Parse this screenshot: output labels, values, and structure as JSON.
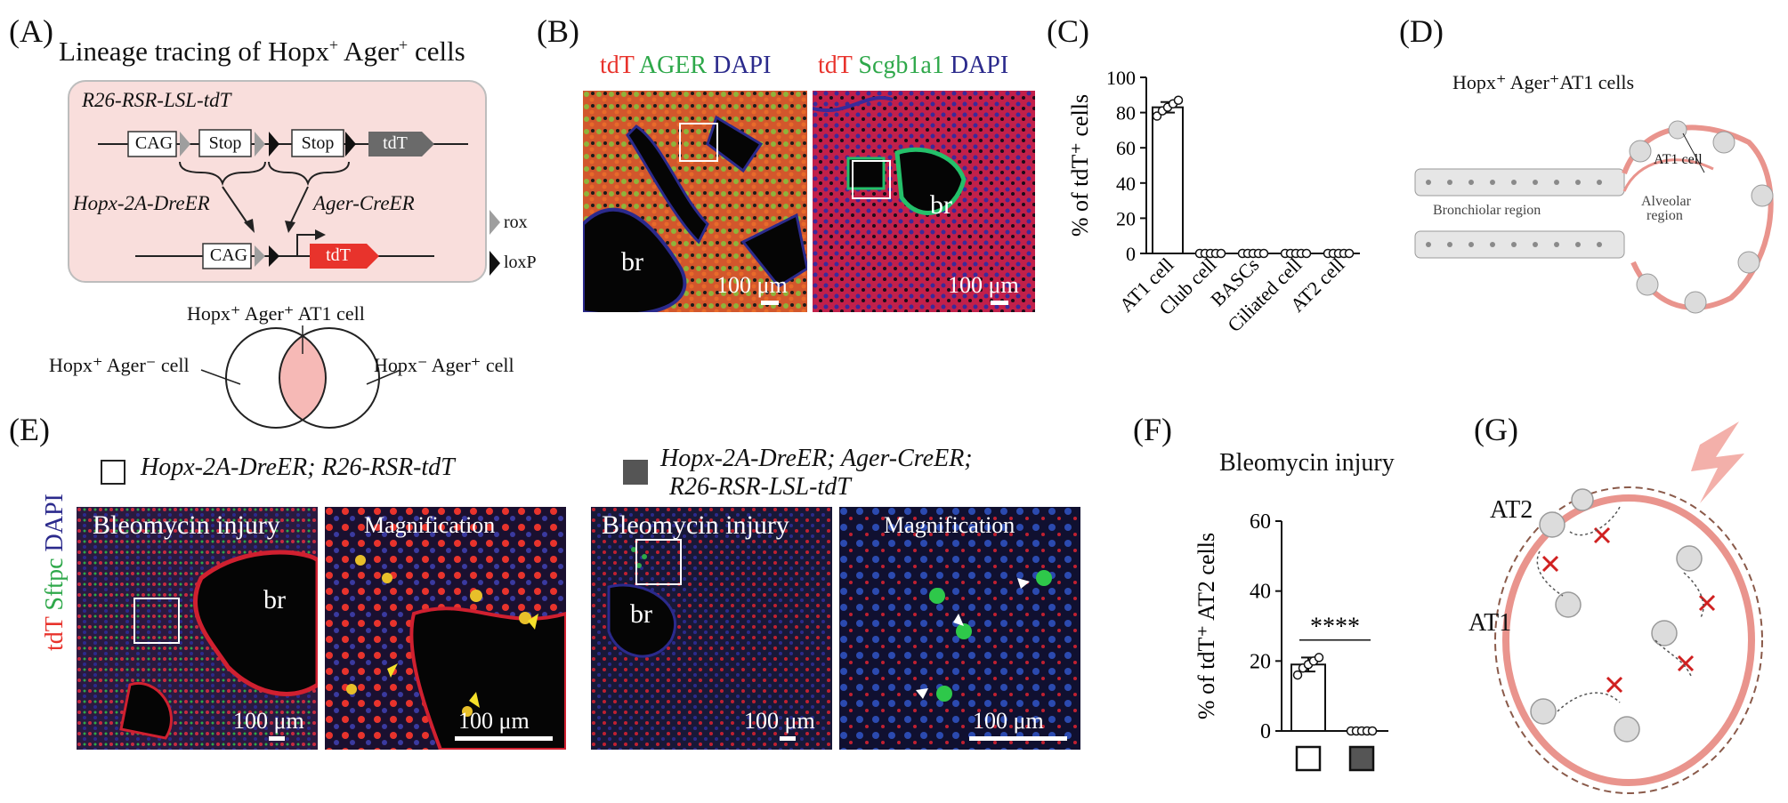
{
  "panels": {
    "a": "(A)",
    "b": "(B)",
    "c": "(C)",
    "d": "(D)",
    "e": "(E)",
    "f": "(F)",
    "g": "(G)"
  },
  "panel_a": {
    "title_pre": "Lineage tracing of Hopx",
    "title_sup1": "+",
    "title_mid": " Ager",
    "title_sup2": "+",
    "title_post": " cells",
    "allele": "R26-RSR-LSL-tdT",
    "cag": "CAG",
    "stop": "Stop",
    "tdt": "tdT",
    "dre": "Hopx-2A-DreER",
    "cre": "Ager-CreER",
    "rox": "rox",
    "loxp": "loxP",
    "venn_top": "Hopx⁺ Ager⁺ AT1 cell",
    "venn_left": "Hopx⁺ Ager⁻ cell",
    "venn_right": "Hopx⁻ Ager⁺ cell"
  },
  "panel_b": {
    "left_tdt": "tdT",
    "left_ager": "AGER",
    "left_dapi": "DAPI",
    "right_tdt": "tdT",
    "right_scgb": "Scgb1a1",
    "right_dapi": "DAPI",
    "br": "br",
    "scale": "100 μm"
  },
  "panel_d": {
    "title": "Hopx⁺ Ager⁺AT1 cells",
    "at1": "AT1 cell",
    "bronchiolar": "Bronchiolar region",
    "alveolar1": "Alveolar",
    "alveolar2": "region"
  },
  "panel_e": {
    "legend_open": "Hopx-2A-DreER; R26-RSR-tdT",
    "legend_filled_1": "Hopx-2A-DreER; Ager-CreER;",
    "legend_filled_2": "R26-RSR-LSL-tdT",
    "bleo": "Bleomycin injury",
    "mag": "Magnification",
    "side_tdt": "tdT",
    "side_sftpc": "Sftpc",
    "side_dapi": "DAPI",
    "br": "br",
    "scale": "100 μm"
  },
  "panel_f": {
    "title": "Bleomycin injury",
    "sig": "****"
  },
  "panel_g": {
    "at2": "AT2",
    "at1": "AT1"
  },
  "colors": {
    "tdt_red": "#e8332c",
    "ager_green": "#2ea84a",
    "dapi_blue": "#2b2a8c",
    "pink_box": "#f9dedc",
    "grey": "#6a6a6a"
  },
  "chart_data": [
    {
      "id": "C",
      "type": "bar",
      "title": "",
      "ylabel": "% of tdT⁺ cells",
      "xlabel": "",
      "categories": [
        "AT1 cell",
        "Club cell",
        "BASCs",
        "Ciliated cell",
        "AT2 cell"
      ],
      "values": [
        83,
        0,
        0,
        0,
        0
      ],
      "errors": [
        3,
        0,
        0,
        0,
        0
      ],
      "points": [
        [
          78,
          81,
          83,
          85,
          87
        ],
        [
          0,
          0,
          0,
          0,
          0
        ],
        [
          0,
          0,
          0,
          0,
          0
        ],
        [
          0,
          0,
          0,
          0,
          0
        ],
        [
          0,
          0,
          0,
          0,
          0
        ]
      ],
      "ylim": [
        0,
        100
      ],
      "yticks": [
        0,
        20,
        40,
        60,
        80,
        100
      ]
    },
    {
      "id": "F",
      "type": "bar",
      "title": "Bleomycin injury",
      "ylabel": "% of tdT⁺ AT2 cells",
      "xlabel": "",
      "categories": [
        "Hopx-2A-DreER; R26-RSR-tdT",
        "Hopx-2A-DreER; Ager-CreER; R26-RSR-LSL-tdT"
      ],
      "values": [
        19,
        0
      ],
      "errors": [
        2,
        0
      ],
      "points": [
        [
          16,
          18,
          19,
          20,
          21
        ],
        [
          0,
          0,
          0,
          0,
          0
        ]
      ],
      "ylim": [
        0,
        60
      ],
      "yticks": [
        0,
        20,
        40,
        60
      ],
      "significance": "****"
    }
  ]
}
